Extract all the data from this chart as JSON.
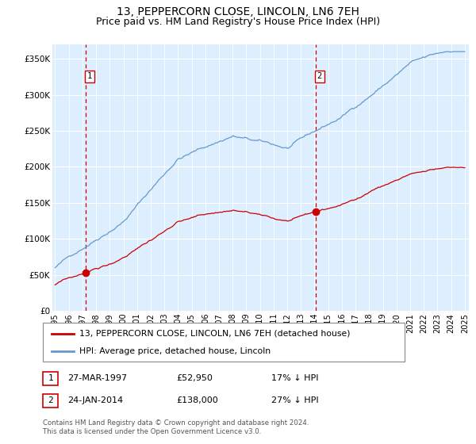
{
  "title": "13, PEPPERCORN CLOSE, LINCOLN, LN6 7EH",
  "subtitle": "Price paid vs. HM Land Registry's House Price Index (HPI)",
  "ylabel_ticks": [
    "£0",
    "£50K",
    "£100K",
    "£150K",
    "£200K",
    "£250K",
    "£300K",
    "£350K"
  ],
  "ytick_values": [
    0,
    50000,
    100000,
    150000,
    200000,
    250000,
    300000,
    350000
  ],
  "ylim": [
    0,
    370000
  ],
  "xlim_start": 1994.8,
  "xlim_end": 2025.3,
  "sale1_date": 1997.23,
  "sale1_price": 52950,
  "sale1_label": "1",
  "sale2_date": 2014.07,
  "sale2_price": 138000,
  "sale2_label": "2",
  "line_color_property": "#cc0000",
  "line_color_hpi": "#6699cc",
  "background_color": "#ddeeff",
  "grid_color": "#ffffff",
  "legend_line1": "13, PEPPERCORN CLOSE, LINCOLN, LN6 7EH (detached house)",
  "legend_line2": "HPI: Average price, detached house, Lincoln",
  "table_row1": [
    "1",
    "27-MAR-1997",
    "£52,950",
    "17% ↓ HPI"
  ],
  "table_row2": [
    "2",
    "24-JAN-2014",
    "£138,000",
    "27% ↓ HPI"
  ],
  "footer": "Contains HM Land Registry data © Crown copyright and database right 2024.\nThis data is licensed under the Open Government Licence v3.0.",
  "title_fontsize": 10,
  "subtitle_fontsize": 9,
  "tick_fontsize": 7.5
}
